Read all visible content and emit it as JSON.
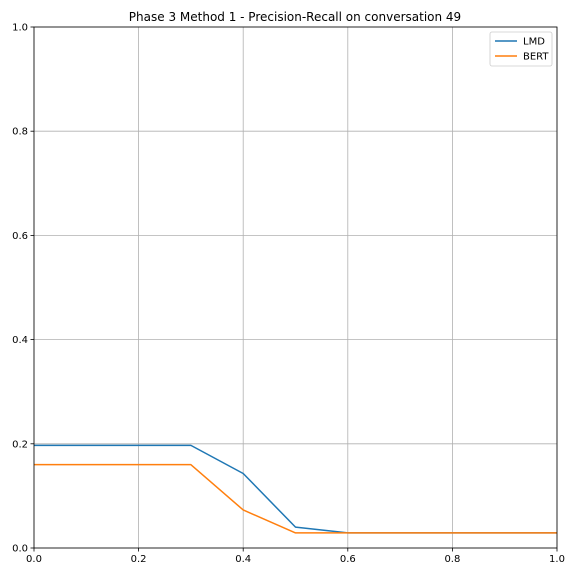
{
  "chart_data": {
    "type": "line",
    "title": "Phase 3 Method 1 - Precision-Recall on conversation 49",
    "xlabel": "",
    "ylabel": "",
    "xlim": [
      0,
      1
    ],
    "ylim": [
      0,
      1
    ],
    "xticks": [
      "0.0",
      "0.2",
      "0.4",
      "0.6",
      "0.8",
      "1.0"
    ],
    "yticks": [
      "0.0",
      "0.2",
      "0.4",
      "0.6",
      "0.8",
      "1.0"
    ],
    "grid": true,
    "legend_position": "top-right",
    "x": [
      0.0,
      0.1,
      0.2,
      0.3,
      0.4,
      0.5,
      0.6,
      0.7,
      0.8,
      0.9,
      1.0
    ],
    "series": [
      {
        "name": "LMD",
        "color": "#1f77b4",
        "values": [
          0.197,
          0.197,
          0.197,
          0.197,
          0.143,
          0.04,
          0.029,
          0.029,
          0.029,
          0.029,
          0.029
        ]
      },
      {
        "name": "BERT",
        "color": "#ff7f0e",
        "values": [
          0.16,
          0.16,
          0.16,
          0.16,
          0.073,
          0.029,
          0.029,
          0.029,
          0.029,
          0.029,
          0.029
        ]
      }
    ]
  }
}
